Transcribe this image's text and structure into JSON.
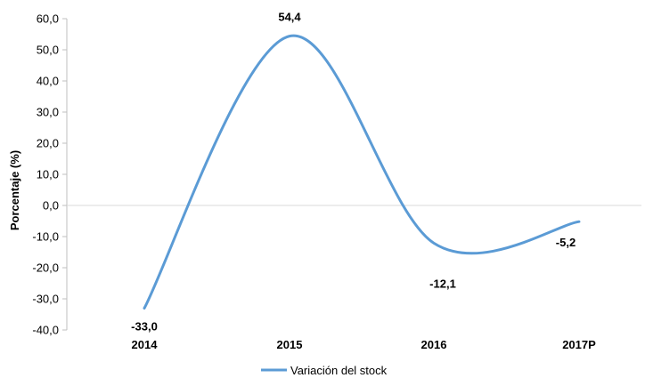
{
  "chart_data": {
    "type": "line",
    "smooth": true,
    "categories": [
      "2014",
      "2015",
      "2016",
      "2017P"
    ],
    "series": [
      {
        "name": "Variación del stock",
        "values": [
          -33.0,
          54.4,
          -12.1,
          -5.2
        ],
        "data_labels": [
          "-33,0",
          "54,4",
          "-12,1",
          "-5,2"
        ],
        "color": "#5b9bd5"
      }
    ],
    "ylabel": "Porcentaje (%)",
    "ylim": [
      -40,
      60
    ],
    "yticks": [
      60,
      50,
      40,
      30,
      20,
      10,
      0,
      -10,
      -20,
      -30,
      -40
    ],
    "ytick_labels": [
      "60,0",
      "50,0",
      "40,0",
      "30,0",
      "20,0",
      "10,0",
      "0,0",
      "-10,0",
      "-20,0",
      "-30,0",
      "-40,0"
    ],
    "grid": false,
    "zero_line": true,
    "legend_position": "bottom"
  }
}
